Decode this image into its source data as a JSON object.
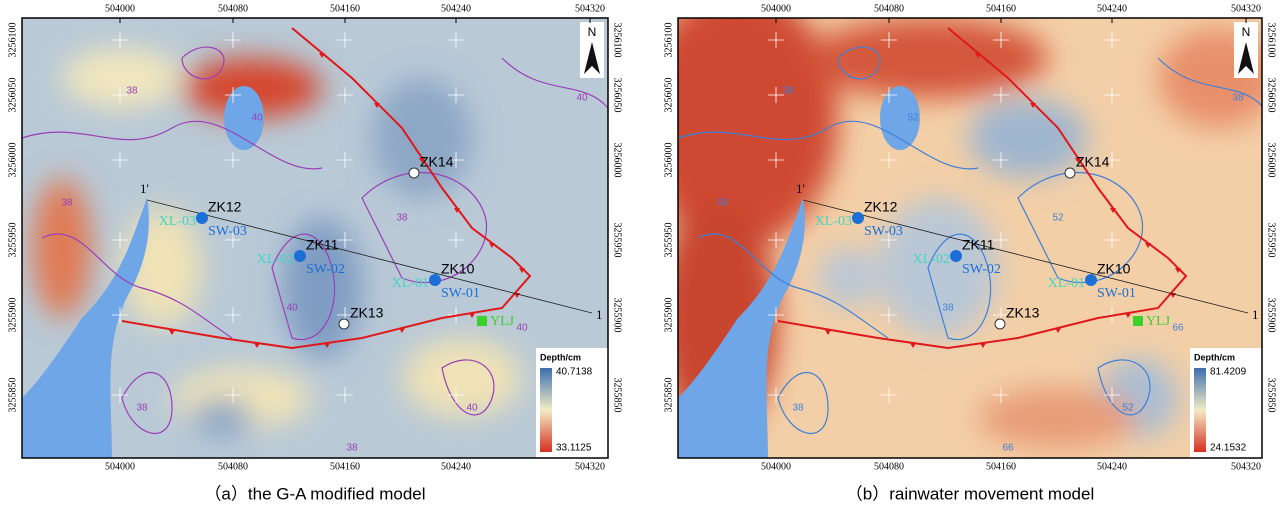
{
  "axes": {
    "x_ticks": [
      "504000",
      "504080",
      "504160",
      "504240",
      "504320"
    ],
    "y_ticks": [
      "3256100",
      "3256050",
      "3256000",
      "3255950",
      "3255900",
      "3255850"
    ]
  },
  "map_labels": {
    "north": "N",
    "section_start": "1'",
    "section_end": "1",
    "boreholes": [
      "ZK12",
      "ZK11",
      "ZK10",
      "ZK13",
      "ZK14"
    ],
    "stations_xl": [
      "XL-03",
      "XL-02",
      "XL-01"
    ],
    "stations_sw": [
      "SW-03",
      "SW-02",
      "SW-01"
    ],
    "site": "YLJ"
  },
  "panels": [
    {
      "caption": "（a）the G-A modified model",
      "legend": {
        "title": "Depth/cm",
        "max": "40.7138",
        "min": "33.1125"
      },
      "contour_levels": [
        "38",
        "40"
      ]
    },
    {
      "caption": "（b）rainwater movement model",
      "legend": {
        "title": "Depth/cm",
        "max": "81.4209",
        "min": "24.1532"
      },
      "contour_levels": [
        "38",
        "52",
        "66"
      ]
    }
  ]
}
